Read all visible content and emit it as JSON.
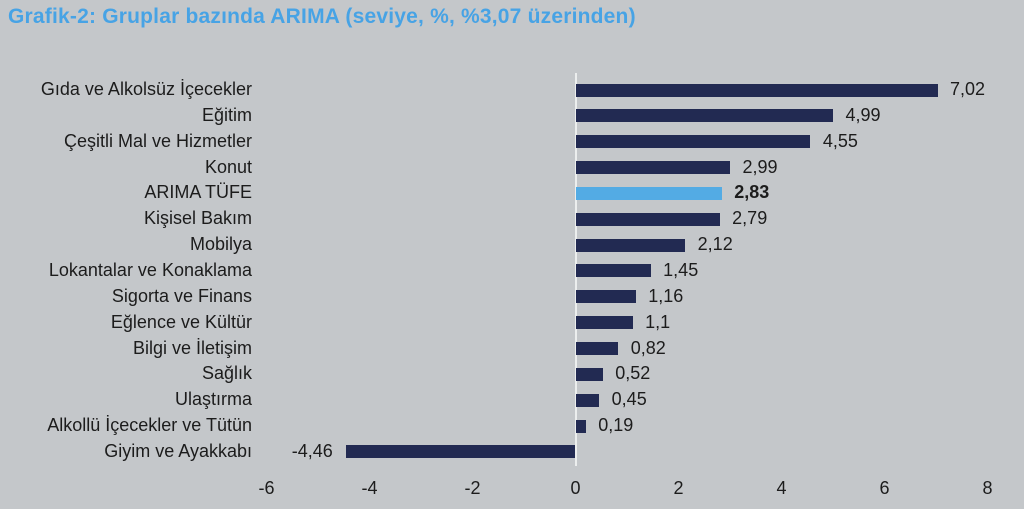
{
  "title": "Grafik-2: Gruplar bazında ARIMA (seviye, %, %3,07 üzerinden)",
  "colors": {
    "background": "#c4c7ca",
    "title": "#47a3e5",
    "bar_default": "#222a52",
    "bar_highlight": "#53abe4",
    "zero_axis_line": "#eceeee",
    "text": "#1c1c1c"
  },
  "chart_data": {
    "type": "bar",
    "orientation": "horizontal",
    "title": "Grafik-2: Gruplar bazında ARIMA (seviye, %, %3,07 üzerinden)",
    "categories": [
      "Gıda ve Alkolsüz İçecekler",
      "Eğitim",
      "Çeşitli Mal ve Hizmetler",
      "Konut",
      "ARIMA TÜFE",
      "Kişisel Bakım",
      "Mobilya",
      "Lokantalar ve Konaklama",
      "Sigorta ve Finans",
      "Eğlence ve Kültür",
      "Bilgi ve İletişim",
      "Sağlık",
      "Ulaştırma",
      "Alkollü İçecekler ve Tütün",
      "Giyim ve Ayakkabı"
    ],
    "values": [
      7.02,
      4.99,
      4.55,
      2.99,
      2.83,
      2.79,
      2.12,
      1.45,
      1.16,
      1.1,
      0.82,
      0.52,
      0.45,
      0.19,
      -4.46
    ],
    "value_labels": [
      "7,02",
      "4,99",
      "4,55",
      "2,99",
      "2,83",
      "2,79",
      "2,12",
      "1,45",
      "1,16",
      "1,1",
      "0,82",
      "0,52",
      "0,45",
      "0,19",
      "-4,46"
    ],
    "highlight_index": 4,
    "xlabel": "",
    "ylabel": "",
    "xlim": [
      -6,
      8
    ],
    "x_ticks": [
      -6,
      -4,
      -2,
      0,
      2,
      4,
      6,
      8
    ],
    "x_tick_labels": [
      "-6",
      "-4",
      "-2",
      "0",
      "2",
      "4",
      "6",
      "8"
    ],
    "grid": false,
    "legend": "none",
    "value_labels_shown": true
  }
}
